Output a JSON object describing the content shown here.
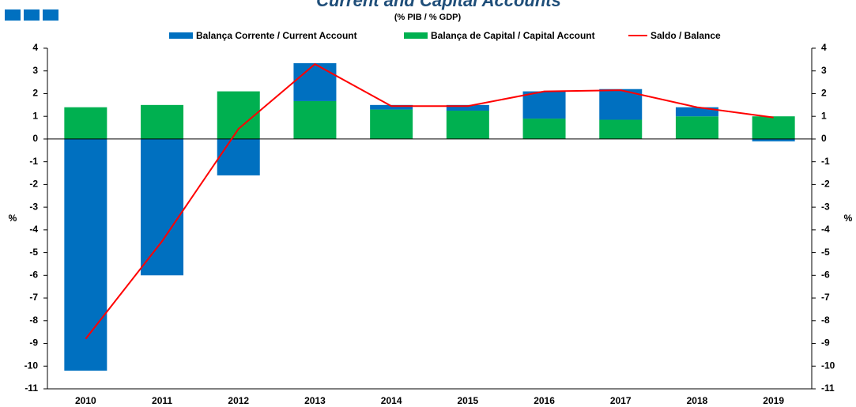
{
  "chart_data": {
    "type": "bar",
    "title": "Current and Capital Accounts",
    "subtitle": "(% PIB / % GDP)",
    "ylabel": "%",
    "y2label": "%",
    "categories": [
      "2010",
      "2011",
      "2012",
      "2013",
      "2014",
      "2015",
      "2016",
      "2017",
      "2018",
      "2019"
    ],
    "series": [
      {
        "name": "Balança Corrente / Current Account",
        "type": "bar",
        "color": "#0070c0",
        "values": [
          -10.2,
          -6.0,
          -1.6,
          1.67,
          0.2,
          0.25,
          1.2,
          1.35,
          0.4,
          -0.1
        ]
      },
      {
        "name": "Balança de Capital / Capital Account",
        "type": "bar",
        "color": "#00b050",
        "values": [
          1.4,
          1.5,
          2.1,
          1.67,
          1.3,
          1.25,
          0.9,
          0.85,
          1.0,
          1.0
        ]
      },
      {
        "name": "Saldo / Balance",
        "type": "line",
        "color": "#ff0000",
        "values": [
          -8.8,
          -4.5,
          0.45,
          3.3,
          1.45,
          1.45,
          2.1,
          2.15,
          1.4,
          0.95
        ]
      }
    ],
    "stacked": true,
    "ylim": [
      -11,
      4
    ],
    "yticks": [
      -11,
      -10,
      -9,
      -8,
      -7,
      -6,
      -5,
      -4,
      -3,
      -2,
      -1,
      0,
      1,
      2,
      3,
      4
    ],
    "y2lim": [
      -11,
      4
    ],
    "y2ticks": [
      -11,
      -10,
      -9,
      -8,
      -7,
      -6,
      -5,
      -4,
      -3,
      -2,
      -1,
      0,
      1,
      2,
      3,
      4
    ],
    "legend": "top"
  }
}
